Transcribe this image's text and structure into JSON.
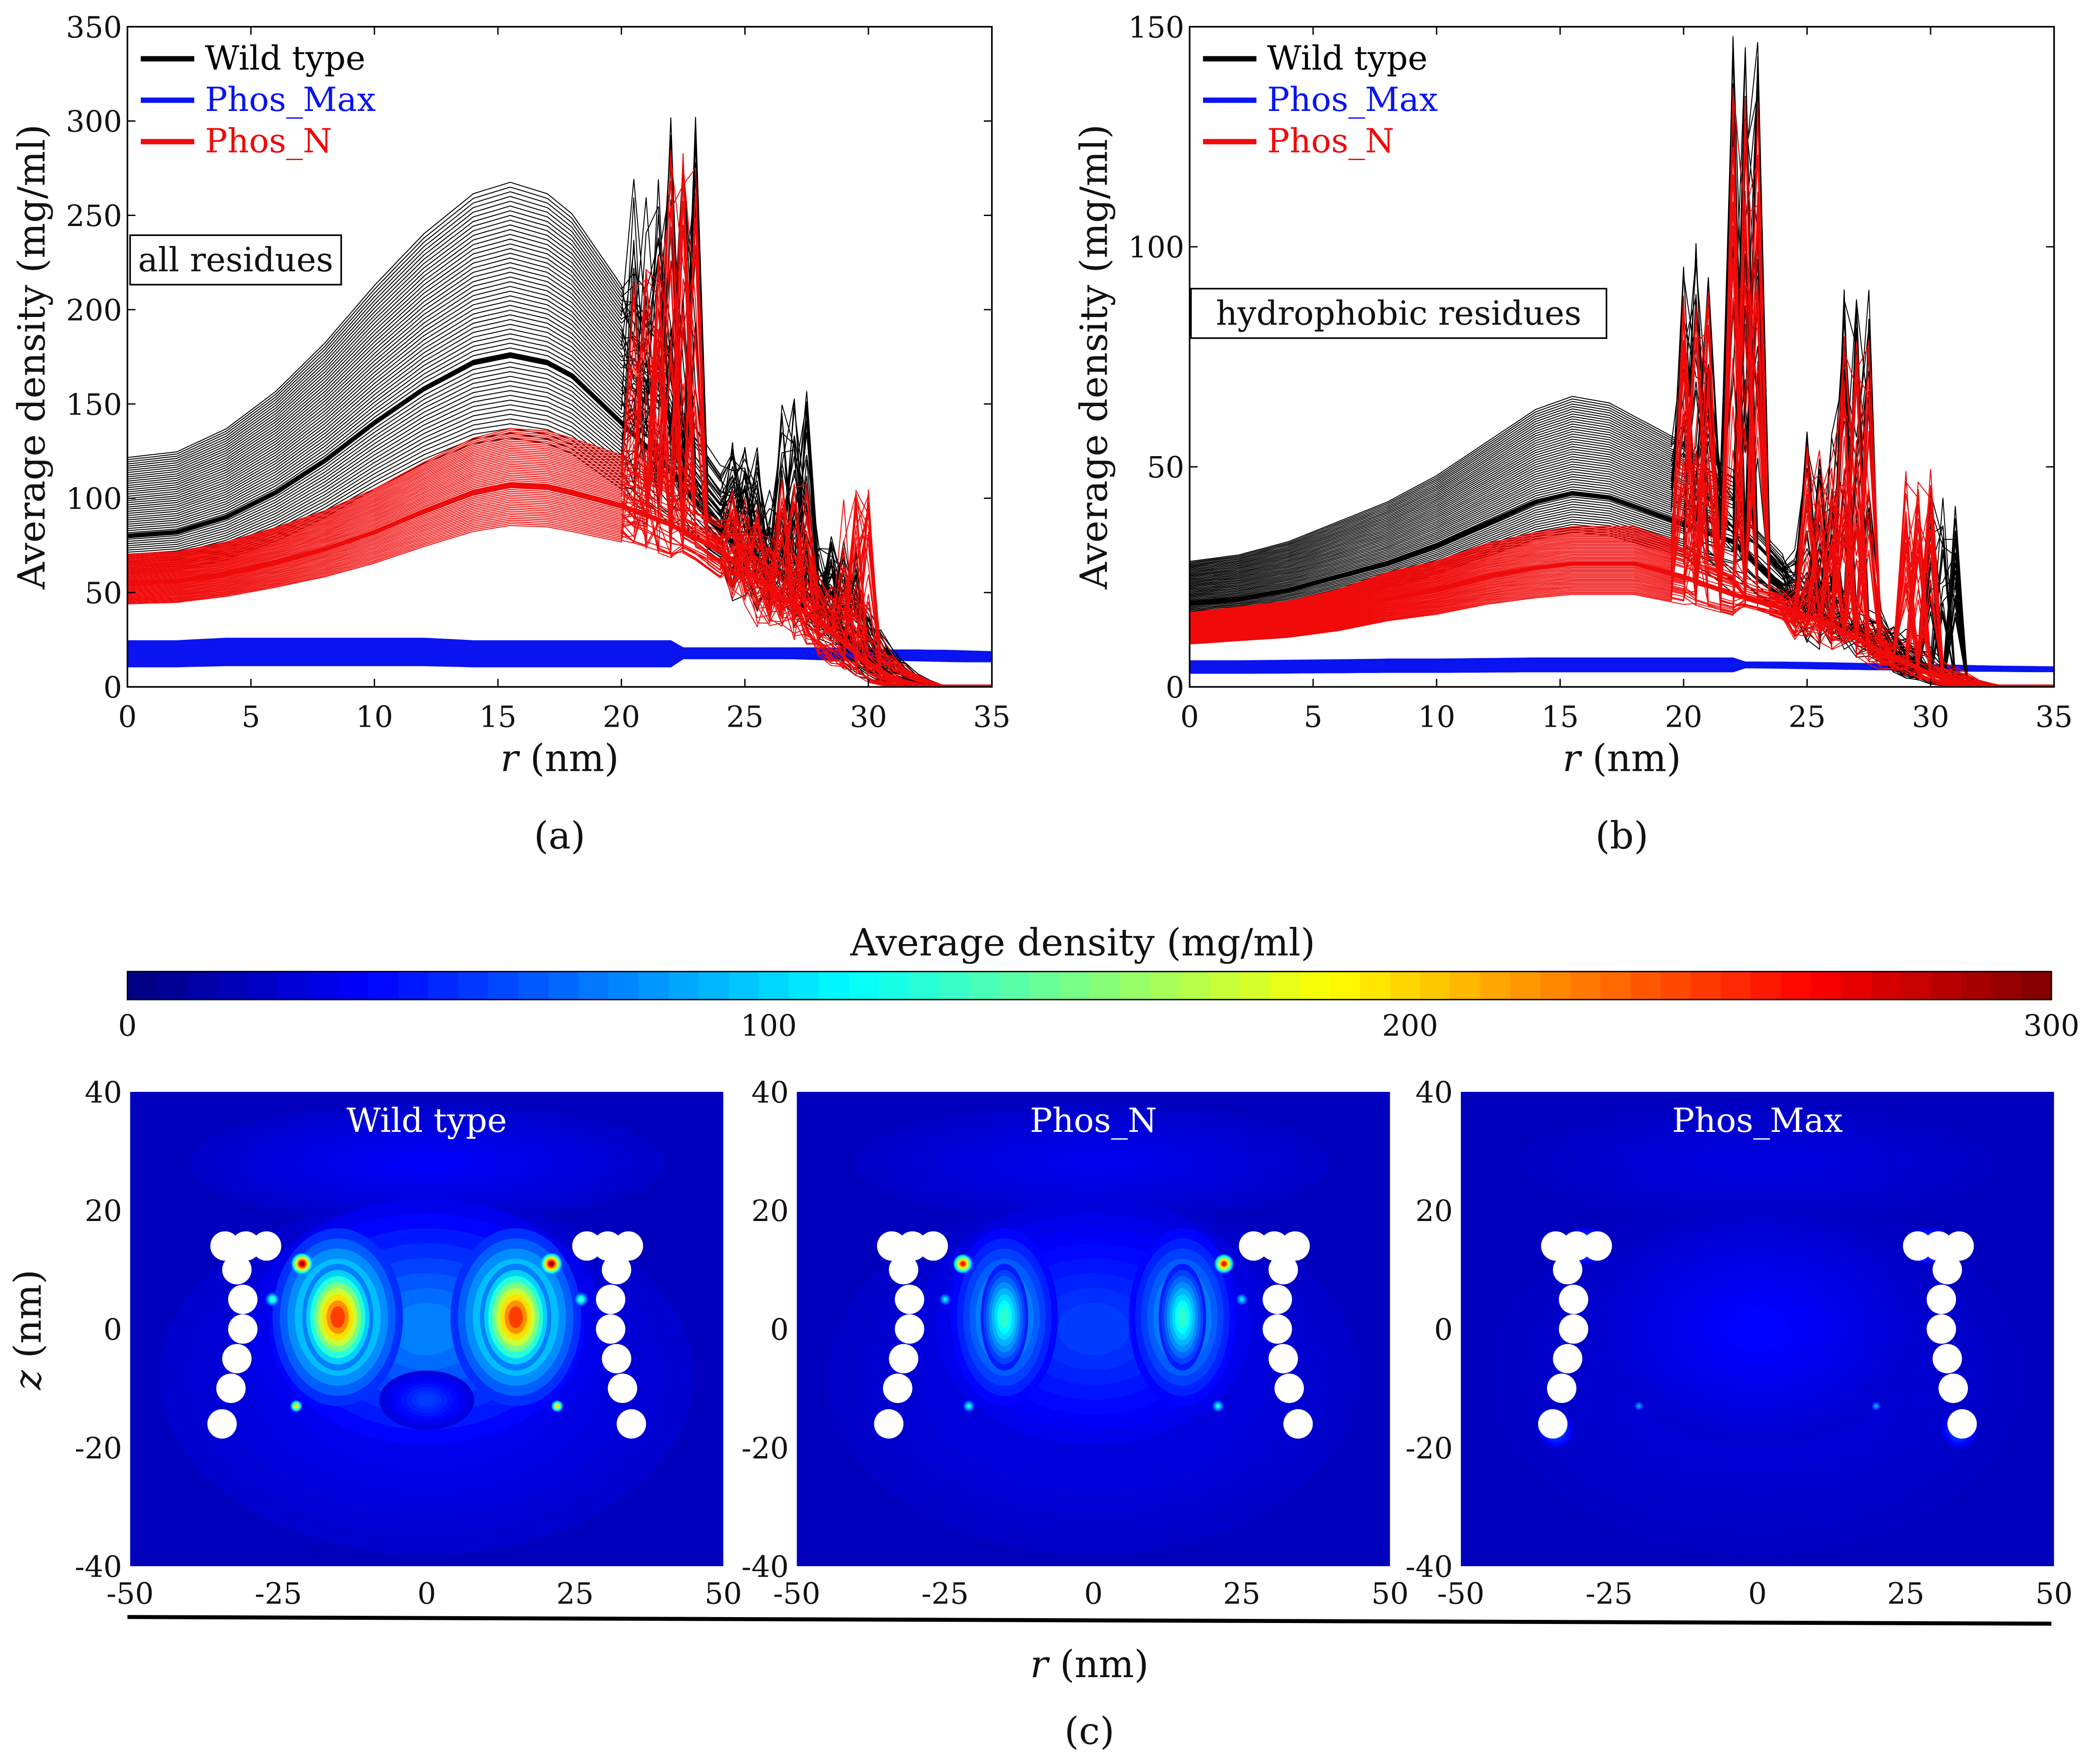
{
  "colors": {
    "wild_type": "#000000",
    "phos_max": "#0a14f0",
    "phos_n": "#f00a0a"
  },
  "chart_data": [
    {
      "type": "line",
      "panel_label": "(a)",
      "annotation": "all residues",
      "xlabel_italic": "r",
      "xlabel": " (nm)",
      "ylabel": "Average density (mg/ml)",
      "xlim": [
        0,
        35
      ],
      "ylim": [
        0,
        350
      ],
      "xticks": [
        0,
        5,
        10,
        15,
        20,
        25,
        30,
        35
      ],
      "yticks": [
        0,
        50,
        100,
        150,
        200,
        250,
        300,
        350
      ],
      "legend": [
        "Wild type",
        "Phos_Max",
        "Phos_N"
      ],
      "legend_position": "top-left",
      "x": [
        0,
        2,
        4,
        6,
        8,
        10,
        12,
        14,
        15.5,
        17,
        18,
        20,
        22,
        24,
        26,
        28,
        30,
        31,
        32,
        35
      ],
      "series": [
        {
          "name": "Wild type",
          "key": "wild_type",
          "values": [
            80,
            82,
            90,
            103,
            120,
            140,
            158,
            172,
            176,
            172,
            165,
            140,
            115,
            82,
            62,
            45,
            15,
            5,
            0,
            0
          ],
          "spread": [
            0.75,
            1.52
          ],
          "peaks": [
            [
              21,
              270
            ],
            [
              22.5,
              310
            ],
            [
              25,
              130
            ],
            [
              27,
              160
            ],
            [
              29,
              80
            ]
          ]
        },
        {
          "name": "Phos_Max",
          "key": "phos_max",
          "values": [
            18,
            18,
            19,
            19,
            19,
            19,
            19,
            18,
            18,
            18,
            18,
            18,
            18,
            18,
            18,
            18,
            17,
            17,
            17,
            16
          ],
          "spread": [
            0.6,
            1.35
          ],
          "peaks": []
        },
        {
          "name": "Phos_N",
          "key": "phos_n",
          "values": [
            55,
            56,
            60,
            66,
            73,
            82,
            93,
            103,
            107,
            106,
            103,
            96,
            86,
            72,
            52,
            35,
            12,
            4,
            0,
            0
          ],
          "spread": [
            0.8,
            1.28
          ],
          "peaks": [
            [
              21,
              230
            ],
            [
              22.5,
              285
            ],
            [
              25,
              100
            ],
            [
              27,
              110
            ],
            [
              29.5,
              105
            ]
          ]
        }
      ]
    },
    {
      "type": "line",
      "panel_label": "(b)",
      "annotation": "hydrophobic residues",
      "xlabel_italic": "r",
      "xlabel": " (nm)",
      "ylabel": "Average density (mg/ml)",
      "xlim": [
        0,
        35
      ],
      "ylim": [
        0,
        150
      ],
      "xticks": [
        0,
        5,
        10,
        15,
        20,
        25,
        30,
        35
      ],
      "yticks": [
        0,
        50,
        100,
        150
      ],
      "legend": [
        "Wild type",
        "Phos_Max",
        "Phos_N"
      ],
      "legend_position": "top-left",
      "x": [
        0,
        2,
        4,
        6,
        8,
        10,
        12,
        14,
        15.5,
        17,
        18,
        20,
        22,
        24,
        26,
        28,
        30,
        31,
        32,
        35
      ],
      "series": [
        {
          "name": "Wild type",
          "key": "wild_type",
          "values": [
            19,
            20,
            22,
            25,
            28,
            32,
            37,
            42,
            44,
            43,
            41,
            37,
            33,
            22,
            15,
            10,
            3,
            1,
            0,
            0
          ],
          "spread": [
            0.8,
            1.5
          ],
          "peaks": [
            [
              20.5,
              105
            ],
            [
              22.5,
              148
            ],
            [
              25.5,
              60
            ],
            [
              27,
              93
            ],
            [
              30.5,
              44
            ]
          ]
        },
        {
          "name": "Phos_Max",
          "key": "phos_max",
          "values": [
            4.5,
            4.5,
            4.6,
            4.7,
            4.8,
            4.8,
            4.9,
            5,
            5,
            5,
            5,
            5,
            5,
            5,
            4.8,
            4.6,
            4.4,
            4.3,
            4.2,
            4
          ],
          "spread": [
            0.7,
            1.3
          ],
          "peaks": []
        },
        {
          "name": "Phos_N",
          "key": "phos_n",
          "values": [
            13,
            14,
            15,
            17,
            20,
            22,
            25,
            27,
            28,
            28,
            28,
            25,
            21,
            18,
            14,
            8,
            3,
            1,
            0,
            0
          ],
          "spread": [
            0.75,
            1.3
          ],
          "peaks": [
            [
              20.5,
              90
            ],
            [
              22.5,
              142
            ],
            [
              25.5,
              55
            ],
            [
              27,
              80
            ],
            [
              29.5,
              50
            ]
          ]
        }
      ]
    },
    {
      "type": "heatmap",
      "panel_label": "(c)",
      "colorbar": {
        "title": "Average density (mg/ml)",
        "range": [
          0,
          300
        ],
        "ticks": [
          0,
          100,
          200,
          300
        ],
        "colormap": "jet"
      },
      "xlabel_italic": "r",
      "xlabel": " (nm)",
      "ylabel_italic": "z",
      "ylabel": " (nm)",
      "xlim": [
        -50,
        50
      ],
      "ylim": [
        -40,
        40
      ],
      "xticks": [
        -50,
        -25,
        0,
        25,
        50
      ],
      "yticks": [
        40,
        20,
        0,
        -20,
        -40
      ],
      "rings_nm": [
        [
          -34,
          14
        ],
        [
          -30.5,
          14
        ],
        [
          -27,
          14
        ],
        [
          -32,
          10
        ],
        [
          -31,
          5
        ],
        [
          -31,
          0
        ],
        [
          -32,
          -5
        ],
        [
          -33,
          -10
        ],
        [
          -34.5,
          -16
        ]
      ],
      "panels": [
        {
          "title": "Wild type",
          "background": 18,
          "blobs": [
            [
              0,
              -8,
              45,
              30,
              38
            ],
            [
              0,
              28,
              40,
              10,
              35
            ],
            [
              0,
              0,
              30,
              22,
              75
            ],
            [
              0,
              -12,
              8,
              5,
              55
            ],
            [
              15,
              2,
              11,
              15,
              150
            ],
            [
              15,
              2,
              6,
              9,
              245
            ],
            [
              21,
              11,
              1.8,
              1.8,
              290
            ],
            [
              26,
              5,
              1.2,
              1.2,
              140
            ],
            [
              22,
              -13,
              1,
              1,
              200
            ]
          ]
        },
        {
          "title": "Phos_N",
          "background": 18,
          "blobs": [
            [
              0,
              -8,
              45,
              30,
              33
            ],
            [
              0,
              28,
              40,
              10,
              32
            ],
            [
              0,
              0,
              30,
              22,
              55
            ],
            [
              15,
              2,
              9,
              15,
              100
            ],
            [
              15,
              2,
              4,
              9,
              125
            ],
            [
              22,
              11,
              1.6,
              1.6,
              260
            ],
            [
              25,
              5,
              1,
              1,
              110
            ],
            [
              21,
              -13,
              1,
              1,
              120
            ]
          ]
        },
        {
          "title": "Phos_Max",
          "background": 18,
          "blobs": [
            [
              0,
              -8,
              45,
              30,
              28
            ],
            [
              0,
              28,
              40,
              10,
              28
            ],
            [
              0,
              0,
              28,
              20,
              38
            ],
            [
              29,
              14,
              4,
              3,
              80
            ],
            [
              34,
              -17,
              3,
              3,
              70
            ],
            [
              20,
              -13,
              0.8,
              0.8,
              90
            ]
          ]
        }
      ]
    }
  ]
}
